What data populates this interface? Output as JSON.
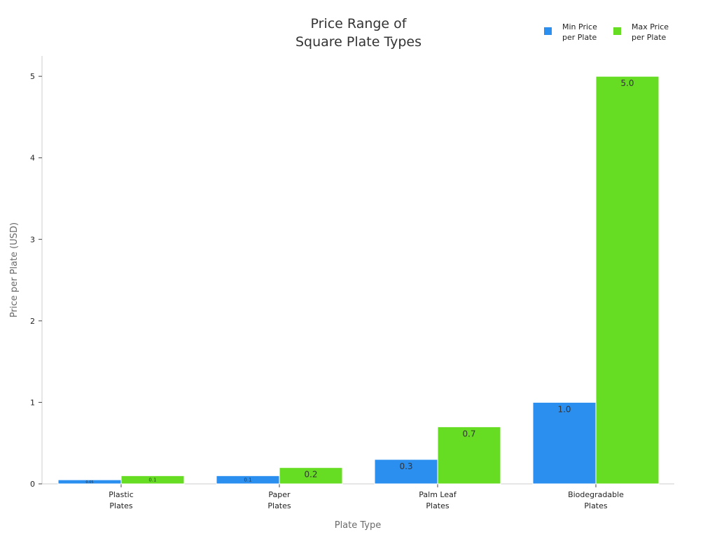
{
  "chart_data": {
    "type": "bar",
    "title": [
      "Price Range of",
      "Square Plate Types"
    ],
    "xlabel": "Plate Type",
    "ylabel": "Price per Plate (USD)",
    "categories": [
      [
        "Plastic",
        "Plates"
      ],
      [
        "Paper",
        "Plates"
      ],
      [
        "Palm Leaf",
        "Plates"
      ],
      [
        "Biodegradable",
        "Plates"
      ]
    ],
    "series": [
      {
        "name": [
          "Min Price",
          "per Plate"
        ],
        "color": "#2b8ff0",
        "values": [
          0.05,
          0.1,
          0.3,
          1.0
        ],
        "labels": [
          "0.05",
          "0.1",
          "0.3",
          "1.0"
        ]
      },
      {
        "name": [
          "Max Price",
          "per Plate"
        ],
        "color": "#66dd22",
        "values": [
          0.1,
          0.2,
          0.7,
          5.0
        ],
        "labels": [
          "0.1",
          "0.2",
          "0.7",
          "5.0"
        ]
      }
    ],
    "ylim": [
      0,
      5.25
    ],
    "yticks": [
      0,
      1,
      2,
      3,
      4,
      5
    ],
    "grid": false,
    "legend_position": "top-right"
  }
}
